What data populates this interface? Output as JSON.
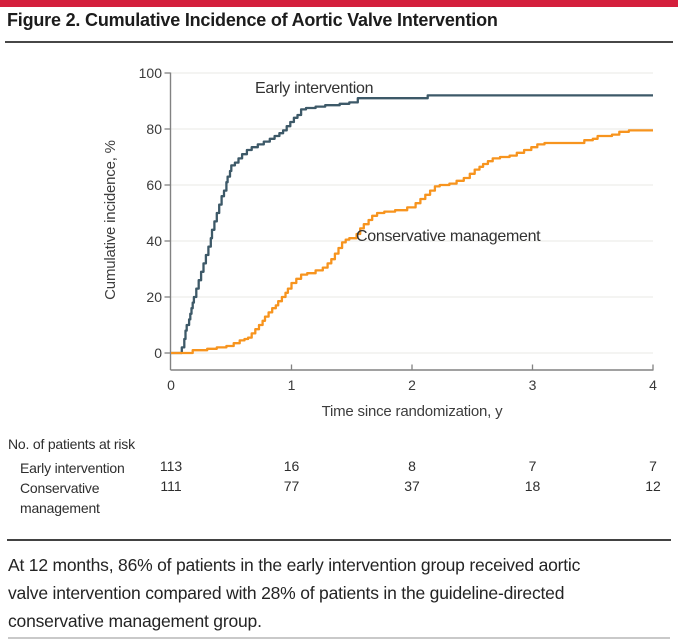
{
  "figure": {
    "title": "Figure 2. Cumulative Incidence of Aortic Valve Intervention",
    "caption_lines": [
      "At 12 months, 86% of patients in the early intervention group received aortic",
      "valve intervention compared with 28% of patients in the guideline-directed",
      "conservative management group."
    ],
    "accent_color": "#d41f3c"
  },
  "chart_data": {
    "type": "line",
    "subtype": "kaplan-meier-step",
    "title": "",
    "xlabel": "Time since randomization, y",
    "ylabel": "Cumulative incidence, %",
    "xlim": [
      0,
      4
    ],
    "ylim": [
      0,
      100
    ],
    "xticks": [
      0,
      1,
      2,
      3,
      4
    ],
    "yticks": [
      0,
      20,
      40,
      60,
      80,
      100
    ],
    "grid": true,
    "grid_color": "#e9e9e5",
    "axis_color": "#828282",
    "series": [
      {
        "name": "Early intervention",
        "color": "#3d5968",
        "value_at_12_months_pct": 86,
        "points": [
          [
            0,
            0
          ],
          [
            0.09,
            2
          ],
          [
            0.11,
            5
          ],
          [
            0.12,
            8
          ],
          [
            0.13,
            10
          ],
          [
            0.15,
            12
          ],
          [
            0.16,
            14
          ],
          [
            0.17,
            16
          ],
          [
            0.18,
            18
          ],
          [
            0.19,
            20
          ],
          [
            0.21,
            23
          ],
          [
            0.23,
            26
          ],
          [
            0.25,
            29
          ],
          [
            0.27,
            32
          ],
          [
            0.29,
            35
          ],
          [
            0.31,
            38
          ],
          [
            0.33,
            41
          ],
          [
            0.34,
            44
          ],
          [
            0.36,
            47
          ],
          [
            0.38,
            50
          ],
          [
            0.4,
            53
          ],
          [
            0.42,
            56
          ],
          [
            0.44,
            58
          ],
          [
            0.46,
            61
          ],
          [
            0.47,
            63
          ],
          [
            0.49,
            65
          ],
          [
            0.5,
            67
          ],
          [
            0.53,
            68
          ],
          [
            0.56,
            69.5
          ],
          [
            0.59,
            71
          ],
          [
            0.63,
            72.5
          ],
          [
            0.67,
            73.5
          ],
          [
            0.72,
            74.5
          ],
          [
            0.77,
            75.5
          ],
          [
            0.82,
            76.5
          ],
          [
            0.86,
            77.5
          ],
          [
            0.9,
            78.5
          ],
          [
            0.93,
            79.5
          ],
          [
            0.96,
            81
          ],
          [
            0.99,
            82.5
          ],
          [
            1.02,
            84
          ],
          [
            1.05,
            85
          ],
          [
            1.08,
            87
          ],
          [
            1.12,
            87.5
          ],
          [
            1.2,
            88
          ],
          [
            1.28,
            88.5
          ],
          [
            1.4,
            89
          ],
          [
            1.48,
            89.5
          ],
          [
            1.55,
            91
          ],
          [
            2.13,
            92
          ],
          [
            4,
            92
          ]
        ]
      },
      {
        "name": "Conservative management",
        "color": "#f7941e",
        "value_at_12_months_pct": 28,
        "points": [
          [
            0,
            0
          ],
          [
            0.18,
            1
          ],
          [
            0.3,
            1.5
          ],
          [
            0.38,
            2
          ],
          [
            0.46,
            2.5
          ],
          [
            0.52,
            3.5
          ],
          [
            0.57,
            4.5
          ],
          [
            0.61,
            5
          ],
          [
            0.64,
            5.5
          ],
          [
            0.67,
            7
          ],
          [
            0.7,
            8.5
          ],
          [
            0.73,
            10
          ],
          [
            0.76,
            11.5
          ],
          [
            0.78,
            13
          ],
          [
            0.81,
            14.5
          ],
          [
            0.84,
            16
          ],
          [
            0.87,
            17
          ],
          [
            0.89,
            18.5
          ],
          [
            0.92,
            20
          ],
          [
            0.95,
            21.5
          ],
          [
            0.97,
            23
          ],
          [
            1.0,
            25
          ],
          [
            1.04,
            26.5
          ],
          [
            1.08,
            28
          ],
          [
            1.13,
            28.5
          ],
          [
            1.2,
            29.5
          ],
          [
            1.26,
            30.5
          ],
          [
            1.3,
            32
          ],
          [
            1.33,
            33.5
          ],
          [
            1.36,
            35.5
          ],
          [
            1.39,
            37.5
          ],
          [
            1.42,
            39.5
          ],
          [
            1.45,
            40.5
          ],
          [
            1.48,
            41
          ],
          [
            1.54,
            42.5
          ],
          [
            1.57,
            44.5
          ],
          [
            1.6,
            46
          ],
          [
            1.64,
            47.5
          ],
          [
            1.67,
            49
          ],
          [
            1.71,
            50
          ],
          [
            1.77,
            50.5
          ],
          [
            1.86,
            51
          ],
          [
            1.96,
            52
          ],
          [
            2.03,
            53.5
          ],
          [
            2.07,
            55
          ],
          [
            2.11,
            56.5
          ],
          [
            2.15,
            58
          ],
          [
            2.19,
            59.5
          ],
          [
            2.23,
            60
          ],
          [
            2.31,
            60.5
          ],
          [
            2.37,
            61.5
          ],
          [
            2.43,
            62.5
          ],
          [
            2.48,
            64
          ],
          [
            2.52,
            65.5
          ],
          [
            2.56,
            66.5
          ],
          [
            2.59,
            67.5
          ],
          [
            2.63,
            68.5
          ],
          [
            2.67,
            69.5
          ],
          [
            2.73,
            70
          ],
          [
            2.81,
            70.5
          ],
          [
            2.87,
            71.5
          ],
          [
            2.93,
            72.5
          ],
          [
            2.99,
            73.5
          ],
          [
            3.04,
            74.5
          ],
          [
            3.1,
            75
          ],
          [
            3.43,
            76
          ],
          [
            3.5,
            76.5
          ],
          [
            3.54,
            77.5
          ],
          [
            3.66,
            78
          ],
          [
            3.72,
            79
          ],
          [
            3.8,
            79.5
          ],
          [
            4,
            79.5
          ]
        ]
      }
    ],
    "risk_table": {
      "header": "No. of patients at risk",
      "times": [
        0,
        1,
        2,
        3,
        4
      ],
      "rows": [
        {
          "label": "Early intervention",
          "values": [
            "113",
            "16",
            "8",
            "7",
            "7"
          ]
        },
        {
          "label": "Conservative management",
          "values": [
            "111",
            "77",
            "37",
            "18",
            "12"
          ]
        }
      ]
    }
  }
}
